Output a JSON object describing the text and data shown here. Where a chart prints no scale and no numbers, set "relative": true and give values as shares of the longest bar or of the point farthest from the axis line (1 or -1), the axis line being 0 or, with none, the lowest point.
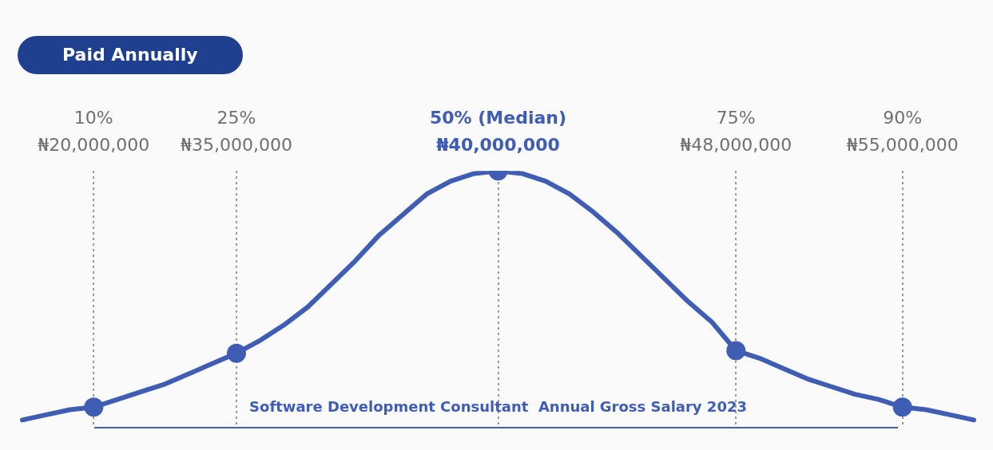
{
  "chart_data": {
    "type": "line",
    "title": "Paid Annually",
    "relative": true,
    "legend": false,
    "grid": "x",
    "categories": [
      null,
      null,
      null,
      "10%\n₦20,000,000",
      null,
      null,
      null,
      null,
      null,
      "25%\n₦35,000,000",
      null,
      null,
      null,
      null,
      null,
      null,
      null,
      null,
      null,
      null,
      "50% (Median)\n₦40,000,000",
      null,
      null,
      null,
      null,
      null,
      null,
      null,
      null,
      null,
      "75%\n₦48,000,000",
      null,
      null,
      null,
      null,
      null,
      null,
      "90%\n₦55,000,000",
      null,
      null,
      null
    ],
    "series": [
      {
        "color": "#3f5db3",
        "marker": "none",
        "values": [
          0.03,
          0.05,
          0.07,
          0.08,
          0.11,
          0.14,
          0.17,
          0.21,
          0.25,
          0.29,
          0.34,
          0.4,
          0.47,
          0.56,
          0.65,
          0.75,
          0.83,
          0.91,
          0.96,
          0.99,
          1,
          0.99,
          0.96,
          0.91,
          0.84,
          0.76,
          0.67,
          0.58,
          0.49,
          0.41,
          0.3,
          0.27,
          0.23,
          0.19,
          0.16,
          0.13,
          0.11,
          0.08,
          0.07,
          0.05,
          0.03
        ]
      },
      {
        "type": "scatter",
        "color": "#3f5db3",
        "marker": "circle",
        "x": [
          "10%\n₦20,000,000",
          "25%\n₦35,000,000",
          "50% (Median)\n₦40,000,000",
          "75%\n₦48,000,000",
          "90%\n₦55,000,000"
        ],
        "values": [
          0.08,
          0.29,
          1,
          0.3,
          0.08
        ]
      }
    ],
    "ref_lines": [
      {
        "axis": "y",
        "value": 0,
        "color": "#3f5db3"
      }
    ],
    "annotations": [
      "Software Development Consultant  Annual Gross Salary 2023"
    ]
  }
}
